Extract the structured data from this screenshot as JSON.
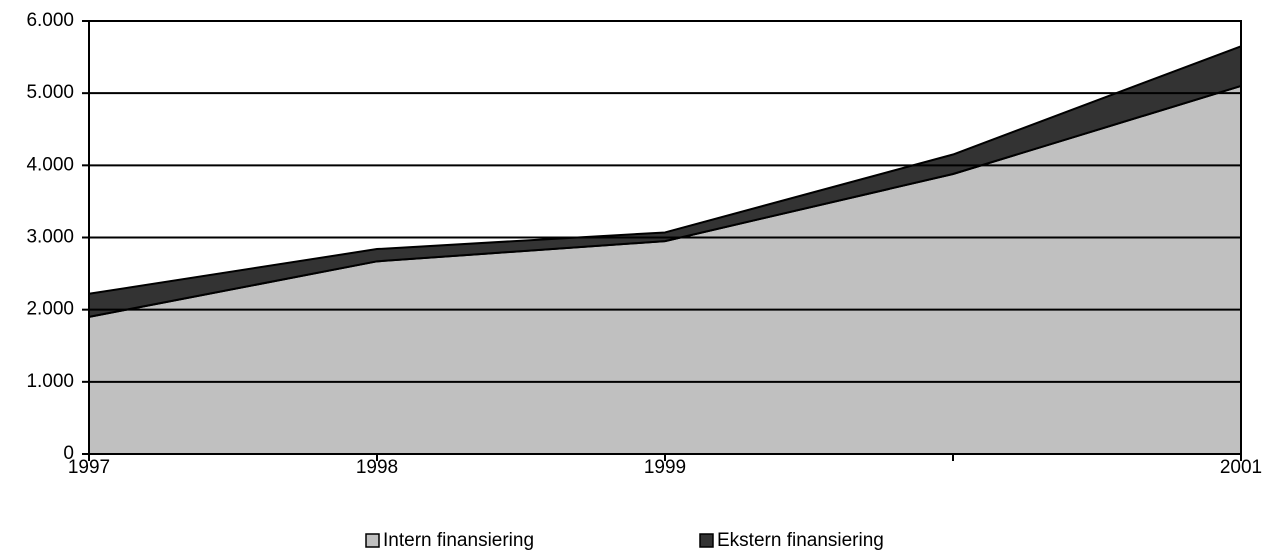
{
  "chart_data": {
    "type": "area",
    "stacked": true,
    "categories": [
      "1997",
      "1998",
      "1999",
      null,
      "2001"
    ],
    "series": [
      {
        "name": "Intern finansiering",
        "color": "#c0c0c0",
        "values": [
          1900,
          2670,
          2950,
          3880,
          5100
        ]
      },
      {
        "name": "Ekstern finansiering",
        "color": "#333333",
        "values": [
          320,
          170,
          120,
          270,
          550
        ]
      }
    ],
    "ylim": [
      0,
      6000
    ],
    "yticks": [
      0,
      {
        "value": 1000,
        "label": "1.000"
      },
      {
        "value": 2000,
        "label": "2.000"
      },
      {
        "value": 3000,
        "label": "3.000"
      },
      {
        "value": 4000,
        "label": "4.000"
      },
      {
        "value": 5000,
        "label": "5.000"
      },
      {
        "value": 6000,
        "label": "6.000"
      }
    ],
    "grid": true,
    "legend": "bottom"
  }
}
